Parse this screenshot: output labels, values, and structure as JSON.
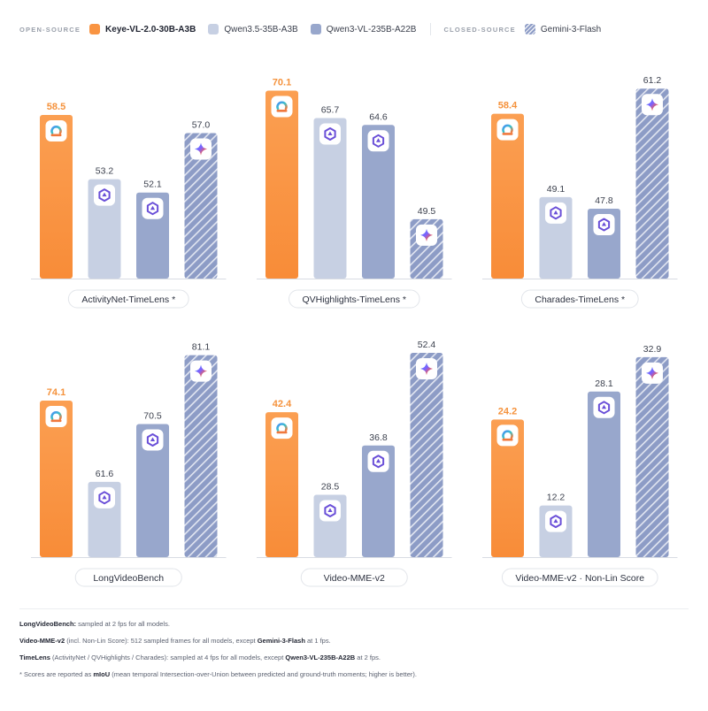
{
  "legend": {
    "open_label": "OPEN-SOURCE",
    "closed_label": "CLOSED-SOURCE",
    "items": [
      {
        "name": "Keye-VL-2.0-30B-A3B",
        "color": "#f99442"
      },
      {
        "name": "Qwen3.5-35B-A3B",
        "color": "#c7d0e3"
      },
      {
        "name": "Qwen3-VL-235B-A22B",
        "color": "#98a7cc"
      },
      {
        "name": "Gemini-3-Flash",
        "color": "#8d9cc6"
      }
    ]
  },
  "chart_data": [
    {
      "type": "bar",
      "title": "ActivityNet-TimeLens *",
      "categories": [
        "Keye-VL-2.0-30B-A3B",
        "Qwen3.5-35B-A3B",
        "Qwen3-VL-235B-A22B",
        "Gemini-3-Flash"
      ],
      "values": [
        58.5,
        53.2,
        52.1,
        57.0
      ],
      "labels": [
        "58.5",
        "53.2",
        "52.1",
        "57.0"
      ],
      "ylim": [
        45,
        62
      ]
    },
    {
      "type": "bar",
      "title": "QVHighlights-TimeLens *",
      "categories": [
        "Keye-VL-2.0-30B-A3B",
        "Qwen3.5-35B-A3B",
        "Qwen3-VL-235B-A22B",
        "Gemini-3-Flash"
      ],
      "values": [
        70.1,
        65.7,
        64.6,
        49.5
      ],
      "labels": [
        "70.1",
        "65.7",
        "64.6",
        "49.5"
      ],
      "ylim": [
        40,
        73
      ]
    },
    {
      "type": "bar",
      "title": "Charades-TimeLens *",
      "categories": [
        "Keye-VL-2.0-30B-A3B",
        "Qwen3.5-35B-A3B",
        "Qwen3-VL-235B-A22B",
        "Gemini-3-Flash"
      ],
      "values": [
        58.4,
        49.1,
        47.8,
        61.2
      ],
      "labels": [
        "58.4",
        "49.1",
        "47.8",
        "61.2"
      ],
      "ylim": [
        40,
        63
      ]
    },
    {
      "type": "bar",
      "title": "LongVideoBench",
      "categories": [
        "Keye-VL-2.0-30B-A3B",
        "Qwen3.5-35B-A3B",
        "Qwen3-VL-235B-A22B",
        "Gemini-3-Flash"
      ],
      "values": [
        74.1,
        61.6,
        70.5,
        81.1
      ],
      "labels": [
        "74.1",
        "61.6",
        "70.5",
        "81.1"
      ],
      "ylim": [
        50,
        82
      ]
    },
    {
      "type": "bar",
      "title": "Video-MME-v2",
      "categories": [
        "Keye-VL-2.0-30B-A3B",
        "Qwen3.5-35B-A3B",
        "Qwen3-VL-235B-A22B",
        "Gemini-3-Flash"
      ],
      "values": [
        42.4,
        28.5,
        36.8,
        52.4
      ],
      "labels": [
        "42.4",
        "28.5",
        "36.8",
        "52.4"
      ],
      "ylim": [
        18,
        53
      ]
    },
    {
      "type": "bar",
      "title": "Video-MME-v2 · Non-Lin Score",
      "categories": [
        "Keye-VL-2.0-30B-A3B",
        "Qwen3.5-35B-A3B",
        "Qwen3-VL-235B-A22B",
        "Gemini-3-Flash"
      ],
      "values": [
        24.2,
        12.2,
        28.1,
        32.9
      ],
      "labels": [
        "24.2",
        "12.2",
        "28.1",
        "32.9"
      ],
      "ylim": [
        5,
        34
      ]
    }
  ],
  "notes": [
    {
      "bold": "LongVideoBench:",
      "text": " sampled at 2 fps for all models."
    },
    {
      "bold": "Video-MME-v2",
      "text": " (incl. Non-Lin Score): 512 sampled frames for all models, except ",
      "bold2": "Gemini-3-Flash",
      "text2": " at 1 fps."
    },
    {
      "bold": "TimeLens",
      "text": " (ActivityNet / QVHighlights / Charades): sampled at 4 fps for all models, except ",
      "bold2": "Qwen3-VL-235B-A22B",
      "text2": " at 2 fps."
    },
    {
      "bold": "",
      "text": "* Scores are reported as ",
      "bold2": "mIoU",
      "text2": " (mean temporal Intersection-over-Union between predicted and ground-truth moments; higher is better)."
    }
  ],
  "colors": {
    "keye": "#f99442",
    "keye_label": "#f5923c",
    "value_label": "#3a3f4c",
    "baseline": "#d8dce3"
  }
}
